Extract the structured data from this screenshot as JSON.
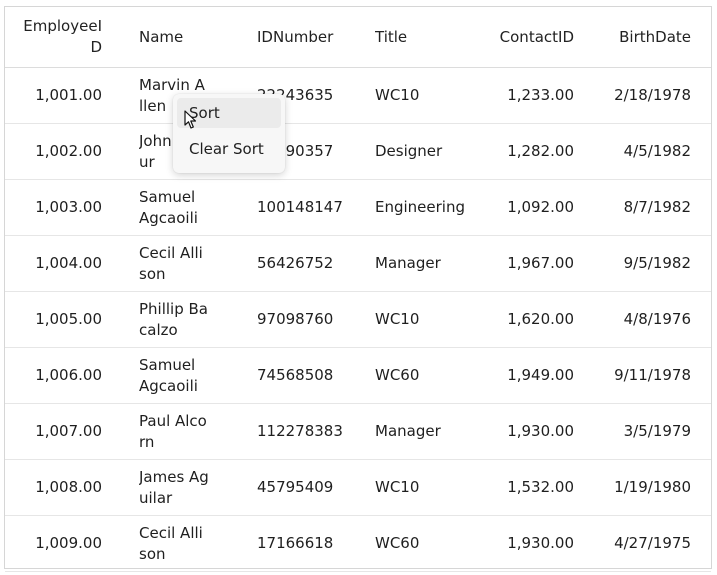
{
  "grid": {
    "columns": [
      "EmployeeID",
      "Name",
      "IDNumber",
      "Title",
      "ContactID",
      "BirthDate"
    ],
    "rows": [
      [
        "1,001.00",
        "Marvin Allen",
        "22243635",
        "WC10",
        "1,233.00",
        "2/18/1978"
      ],
      [
        "1,002.00",
        "John Arthur",
        "20190357",
        "Designer",
        "1,282.00",
        "4/5/1982"
      ],
      [
        "1,003.00",
        "Samuel Agcaoili",
        "100148147",
        "Engineering",
        "1,092.00",
        "8/7/1982"
      ],
      [
        "1,004.00",
        "Cecil Allison",
        "56426752",
        "Manager",
        "1,967.00",
        "9/5/1982"
      ],
      [
        "1,005.00",
        "Phillip Bacalzo",
        "97098760",
        "WC10",
        "1,620.00",
        "4/8/1976"
      ],
      [
        "1,006.00",
        "Samuel Agcaoili",
        "74568508",
        "WC60",
        "1,949.00",
        "9/11/1978"
      ],
      [
        "1,007.00",
        "Paul Alcorn",
        "112278383",
        "Manager",
        "1,930.00",
        "3/5/1979"
      ],
      [
        "1,008.00",
        "James Aguilar",
        "45795409",
        "WC10",
        "1,532.00",
        "1/19/1980"
      ],
      [
        "1,009.00",
        "Cecil Allison",
        "17166618",
        "WC60",
        "1,930.00",
        "4/27/1975"
      ]
    ]
  },
  "context_menu": {
    "items": [
      "Sort",
      "Clear Sort"
    ]
  },
  "cursor_icon": "mouse-pointer-icon"
}
